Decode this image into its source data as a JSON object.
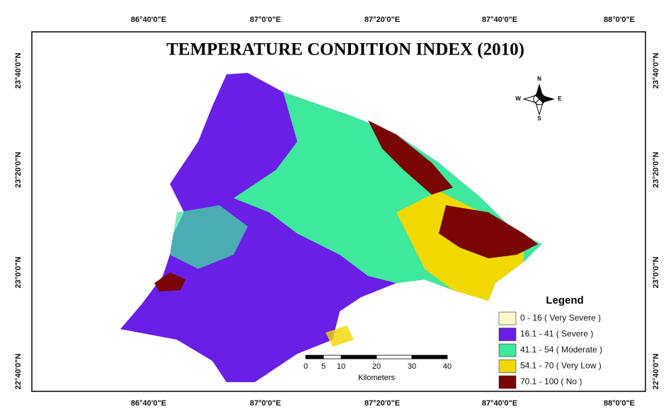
{
  "title": "TEMPERATURE CONDITION INDEX (2010)",
  "x_labels": [
    "86°40'0\"E",
    "87°0'0\"E",
    "87°20'0\"E",
    "87°40'0\"E",
    "88°0'0\"E"
  ],
  "y_labels": [
    "23°40'0\"N",
    "23°20'0\"N",
    "23°0'0\"N",
    "22°40'0\"N"
  ],
  "compass": {
    "n": "N",
    "s": "S",
    "e": "E",
    "w": "W"
  },
  "legend": {
    "title": "Legend",
    "items": [
      {
        "label": "0 - 16 ( Very Severe )",
        "color": "#fff8c8"
      },
      {
        "label": "16.1 - 41 ( Severe )",
        "color": "#6a1fe6"
      },
      {
        "label": "41.1 - 54 ( Moderate )",
        "color": "#3ee89c"
      },
      {
        "label": "54.1 - 70 ( Very Low )",
        "color": "#f0d800"
      },
      {
        "label": "70.1 - 100 ( No )",
        "color": "#7a0505"
      }
    ]
  },
  "scale_bar": {
    "ticks": [
      0,
      5,
      10,
      20,
      30,
      40
    ],
    "unit": "Kilometers"
  }
}
